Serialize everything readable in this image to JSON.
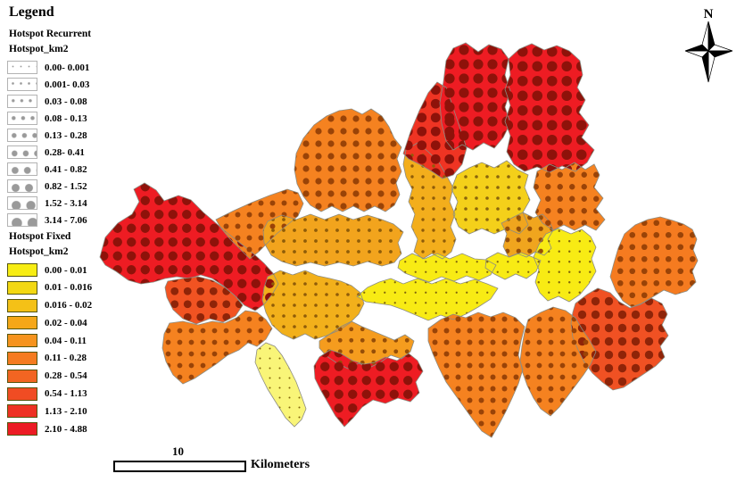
{
  "legend": {
    "title": "Legend",
    "sections": [
      {
        "heading": "Hotspot Recurrent",
        "subheading": "Hotspot_km2",
        "swatch_type": "dots",
        "dot_color": "#9a9a9a",
        "items": [
          {
            "label": "0.00- 0.001",
            "dot_r": 0.5
          },
          {
            "label": "0.001- 0.03",
            "dot_r": 0.9
          },
          {
            "label": "0.03 - 0.08",
            "dot_r": 1.3
          },
          {
            "label": "0.08 - 0.13",
            "dot_r": 1.8
          },
          {
            "label": "0.13 - 0.28",
            "dot_r": 2.3
          },
          {
            "label": "0.28- 0.41",
            "dot_r": 2.8
          },
          {
            "label": "0.41 - 0.82",
            "dot_r": 3.4
          },
          {
            "label": "0.82 - 1.52",
            "dot_r": 4.0
          },
          {
            "label": "1.52 - 3.14",
            "dot_r": 4.7
          },
          {
            "label": "3.14 - 7.06",
            "dot_r": 5.4
          }
        ]
      },
      {
        "heading": "Hotspot Fixed",
        "subheading": "Hotspot_km2",
        "swatch_type": "colors",
        "items": [
          {
            "label": "0.00 - 0.01",
            "color": "#f7ed13"
          },
          {
            "label": "0.01 - 0.016",
            "color": "#f3d812"
          },
          {
            "label": "0.016 - 0.02",
            "color": "#f4c117"
          },
          {
            "label": "0.02 - 0.04",
            "color": "#f5a718"
          },
          {
            "label": "0.04 - 0.11",
            "color": "#f6931e"
          },
          {
            "label": "0.11 - 0.28",
            "color": "#f57b20"
          },
          {
            "label": "0.28 - 0.54",
            "color": "#f26522"
          },
          {
            "label": "0.54 - 1.13",
            "color": "#f04c23"
          },
          {
            "label": "1.13 - 2.10",
            "color": "#ee3123"
          },
          {
            "label": "2.10 - 4.88",
            "color": "#ec1c24"
          }
        ]
      }
    ]
  },
  "compass": {
    "label": "N"
  },
  "scalebar": {
    "distance_label": "10",
    "unit_label": "Kilometers"
  },
  "map": {
    "background": "#ffffff",
    "border_color": "#8c8c82",
    "districts": {
      "d01": {
        "fill": "#ee1c23",
        "dot_r": 5.2,
        "dot_cell": 15.5,
        "dot_color": "#8e120a"
      },
      "d02": {
        "fill": "#f15322",
        "dot_r": 4.4,
        "dot_cell": 14.5,
        "dot_color": "#8f2408"
      },
      "d03": {
        "fill": "#f58220",
        "dot_r": 2.9,
        "dot_cell": 13,
        "dot_color": "#9a4307"
      },
      "d04": {
        "fill": "#f9f578",
        "dot_r": 1.0,
        "dot_cell": 11,
        "dot_color": "#7f660b"
      },
      "d05": {
        "fill": "#f2b01b",
        "dot_r": 1.8,
        "dot_cell": 12,
        "dot_color": "#8f5c08"
      },
      "d06": {
        "fill": "#f59c1e",
        "dot_r": 2.4,
        "dot_cell": 12.5,
        "dot_color": "#964e07"
      },
      "d07": {
        "fill": "#ee1c23",
        "dot_r": 5.2,
        "dot_cell": 15.5,
        "dot_color": "#8e120a"
      },
      "d08": {
        "fill": "#f58220",
        "dot_r": 3.0,
        "dot_cell": 13,
        "dot_color": "#9a4307"
      },
      "d09": {
        "fill": "#f58220",
        "dot_r": 3.6,
        "dot_cell": 14,
        "dot_color": "#9a4307"
      },
      "d10": {
        "fill": "#f2a41d",
        "dot_r": 1.9,
        "dot_cell": 12,
        "dot_color": "#8f5c08"
      },
      "d11": {
        "fill": "#f3ae1c",
        "dot_r": 1.7,
        "dot_cell": 12,
        "dot_color": "#8f5c08"
      },
      "d12": {
        "fill": "#ef3423",
        "dot_r": 5.4,
        "dot_cell": 15.5,
        "dot_color": "#8e120a"
      },
      "d13": {
        "fill": "#ee1c23",
        "dot_r": 5.6,
        "dot_cell": 16,
        "dot_color": "#8e120a"
      },
      "d14": {
        "fill": "#ee1c23",
        "dot_r": 5.8,
        "dot_cell": 16.5,
        "dot_color": "#8e120a"
      },
      "d15": {
        "fill": "#f4d01a",
        "dot_r": 1.8,
        "dot_cell": 12,
        "dot_color": "#8a650a"
      },
      "d16": {
        "fill": "#f0a51e",
        "dot_r": 2.6,
        "dot_cell": 12.5,
        "dot_color": "#964e07"
      },
      "d17": {
        "fill": "#f58220",
        "dot_r": 3.2,
        "dot_cell": 13.5,
        "dot_color": "#9a4307"
      },
      "d18": {
        "fill": "#f8eb14",
        "dot_r": 1.1,
        "dot_cell": 11.5,
        "dot_color": "#80650a"
      },
      "d19": {
        "fill": "#f8eb14",
        "dot_r": 1.2,
        "dot_cell": 11.5,
        "dot_color": "#80650a"
      },
      "d20": {
        "fill": "#f8eb14",
        "dot_r": 1.1,
        "dot_cell": 11.5,
        "dot_color": "#80650a"
      },
      "d21": {
        "fill": "#f8eb14",
        "dot_r": 1.1,
        "dot_cell": 11.5,
        "dot_color": "#80650a"
      },
      "d22": {
        "fill": "#f57b20",
        "dot_r": 3.3,
        "dot_cell": 13.5,
        "dot_color": "#9a4307"
      },
      "d23": {
        "fill": "#f05123",
        "dot_r": 4.7,
        "dot_cell": 15,
        "dot_color": "#8f2408"
      },
      "d24": {
        "fill": "#f58220",
        "dot_r": 2.9,
        "dot_cell": 13,
        "dot_color": "#9a4307"
      },
      "d25": {
        "fill": "#f58220",
        "dot_r": 3.0,
        "dot_cell": 13,
        "dot_color": "#9a4307"
      }
    }
  }
}
